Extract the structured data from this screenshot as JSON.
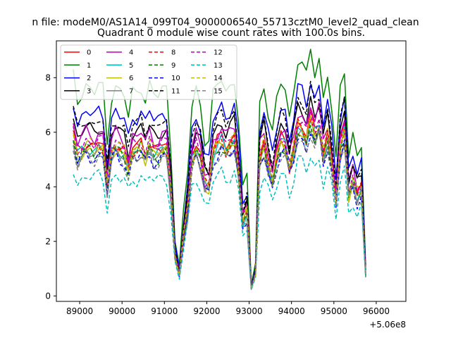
{
  "chart_data": {
    "type": "line",
    "suptitle": "n file: modeM0/AS1A14_099T04_9000006540_55713cztM0_level2_quad_clean",
    "title": "Quadrant 0 module wise count rates with 100.0s bins.",
    "xlabel": "",
    "ylabel": "",
    "x_offset_label": "+5.06e8",
    "xlim": [
      88450,
      96700
    ],
    "ylim": [
      -0.2,
      9.35
    ],
    "x_ticks": [
      89000,
      90000,
      91000,
      92000,
      93000,
      94000,
      95000,
      96000
    ],
    "x_tick_labels": [
      "89000",
      "90000",
      "91000",
      "92000",
      "93000",
      "94000",
      "95000",
      "96000"
    ],
    "y_ticks": [
      0,
      2,
      4,
      6,
      8
    ],
    "y_tick_labels": [
      "0",
      "2",
      "4",
      "6",
      "8"
    ],
    "grid": false,
    "legend_position": "top-left",
    "legend_columns": 4,
    "x_start": 88850,
    "x_step": 100,
    "base_profile": [
      6.2,
      5.5,
      5.7,
      5.9,
      5.8,
      5.7,
      5.9,
      5.8,
      4.3,
      5.6,
      5.9,
      5.7,
      5.6,
      5.0,
      5.7,
      5.7,
      5.9,
      5.5,
      5.9,
      5.6,
      5.6,
      5.8,
      5.8,
      4.2,
      1.6,
      0.8,
      2.3,
      3.5,
      5.3,
      5.8,
      5.4,
      4.4,
      4.3,
      5.6,
      5.9,
      6.1,
      5.7,
      5.9,
      6.1,
      4.9,
      2.9,
      3.3,
      0.3,
      0.9,
      5.4,
      5.9,
      5.1,
      4.5,
      5.4,
      6.0,
      5.9,
      5.0,
      5.7,
      6.6,
      6.5,
      6.1,
      6.9,
      6.3,
      6.7,
      5.5,
      6.2,
      5.2,
      3.7,
      5.8,
      6.4,
      4.0,
      4.5,
      3.9,
      4.2,
      0.8
    ],
    "series": [
      {
        "name": "0",
        "color": "#ff0000",
        "dashed": false,
        "scale": 0.96,
        "offset": 0.0
      },
      {
        "name": "1",
        "color": "#008000",
        "dashed": false,
        "scale": 1.3,
        "offset": 0.05
      },
      {
        "name": "2",
        "color": "#0000ff",
        "dashed": false,
        "scale": 1.15,
        "offset": 0.0
      },
      {
        "name": "3",
        "color": "#000000",
        "dashed": false,
        "scale": 1.05,
        "offset": 0.0
      },
      {
        "name": "4",
        "color": "#bf00bf",
        "dashed": false,
        "scale": 1.02,
        "offset": 0.0
      },
      {
        "name": "5",
        "color": "#00bfbf",
        "dashed": false,
        "scale": 0.93,
        "offset": 0.0
      },
      {
        "name": "6",
        "color": "#bfbf00",
        "dashed": false,
        "scale": 0.92,
        "offset": 0.0
      },
      {
        "name": "7",
        "color": "#808080",
        "dashed": false,
        "scale": 0.9,
        "offset": 0.0
      },
      {
        "name": "8",
        "color": "#ff0000",
        "dashed": true,
        "scale": 0.94,
        "offset": 0.0
      },
      {
        "name": "9",
        "color": "#008000",
        "dashed": true,
        "scale": 0.91,
        "offset": 0.0
      },
      {
        "name": "10",
        "color": "#0000ff",
        "dashed": true,
        "scale": 0.88,
        "offset": 0.0
      },
      {
        "name": "11",
        "color": "#000000",
        "dashed": true,
        "scale": 1.1,
        "offset": 0.0
      },
      {
        "name": "12",
        "color": "#bf00bf",
        "dashed": true,
        "scale": 0.97,
        "offset": 0.0
      },
      {
        "name": "13",
        "color": "#00bfbf",
        "dashed": true,
        "scale": 0.75,
        "offset": 0.0
      },
      {
        "name": "14",
        "color": "#bfbf00",
        "dashed": true,
        "scale": 0.95,
        "offset": 0.0
      },
      {
        "name": "15",
        "color": "#808080",
        "dashed": true,
        "scale": 0.87,
        "offset": 0.0
      }
    ]
  }
}
